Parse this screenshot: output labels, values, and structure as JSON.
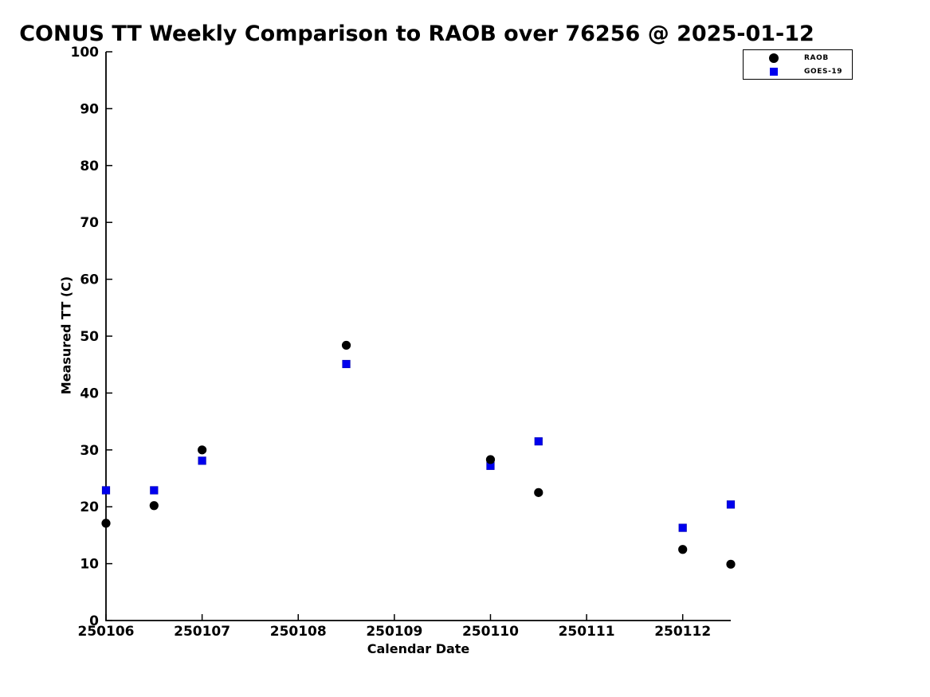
{
  "chart_data": {
    "type": "scatter",
    "title": "CONUS TT Weekly Comparison to RAOB over 76256 @ 2025-01-12",
    "xlabel": "Calendar Date",
    "ylabel": "Measured TT (C)",
    "xlim": [
      250106,
      250112.5
    ],
    "ylim": [
      0,
      100
    ],
    "xticks": [
      250106,
      250107,
      250108,
      250109,
      250110,
      250111,
      250112
    ],
    "yticks": [
      0,
      10,
      20,
      30,
      40,
      50,
      60,
      70,
      80,
      90,
      100
    ],
    "grid": false,
    "legend_position": "top-right",
    "series": [
      {
        "name": "RAOB",
        "marker": "circle",
        "color": "#000000",
        "points": [
          [
            250106.0,
            17.1
          ],
          [
            250106.5,
            20.2
          ],
          [
            250107.0,
            30.0
          ],
          [
            250108.5,
            48.4
          ],
          [
            250110.0,
            28.3
          ],
          [
            250110.5,
            22.5
          ],
          [
            250112.0,
            12.5
          ],
          [
            250112.5,
            9.9
          ]
        ]
      },
      {
        "name": "GOES-19",
        "marker": "square",
        "color": "#0000ee",
        "points": [
          [
            250106.0,
            22.9
          ],
          [
            250106.5,
            22.9
          ],
          [
            250107.0,
            28.1
          ],
          [
            250108.5,
            45.1
          ],
          [
            250110.0,
            27.2
          ],
          [
            250110.5,
            31.5
          ],
          [
            250112.0,
            16.3
          ],
          [
            250112.5,
            20.4
          ]
        ]
      }
    ]
  }
}
